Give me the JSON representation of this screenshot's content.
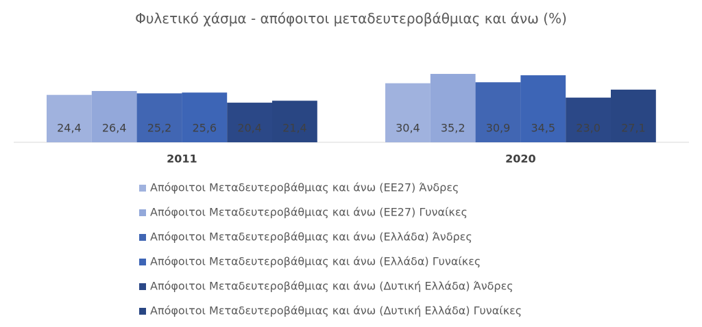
{
  "chart_data": {
    "type": "bar",
    "title": "Φυλετικό χάσμα - απόφοιτοι μεταδευτεροβάθμιας και άνω (%)",
    "categories": [
      "2011",
      "2020"
    ],
    "series": [
      {
        "name": "Απόφοιτοι Μεταδευτεροβάθμιας και άνω (ΕΕ27) Άνδρες",
        "color": "#a0b2de",
        "values": [
          24.4,
          30.4
        ],
        "value_labels": [
          "24,4",
          "30,4"
        ]
      },
      {
        "name": "Απόφοιτοι Μεταδευτεροβάθμιας και άνω (ΕΕ27) Γυναίκες",
        "color": "#93a8da",
        "values": [
          26.4,
          35.2
        ],
        "value_labels": [
          "26,4",
          "35,2"
        ]
      },
      {
        "name": "Απόφοιτοι Μεταδευτεροβάθμιας και άνω (Ελλάδα) Άνδρες",
        "color": "#4166b3",
        "values": [
          25.2,
          30.9
        ],
        "value_labels": [
          "25,2",
          "30,9"
        ]
      },
      {
        "name": "Απόφοιτοι Μεταδευτεροβάθμιας και άνω (Ελλάδα) Γυναίκες",
        "color": "#3d65b6",
        "values": [
          25.6,
          34.5
        ],
        "value_labels": [
          "25,6",
          "34,5"
        ]
      },
      {
        "name": "Απόφοιτοι Μεταδευτεροβάθμιας και άνω (Δυτική Ελλάδα) Άνδρες",
        "color": "#2b4887",
        "values": [
          20.4,
          23.0
        ],
        "value_labels": [
          "20,4",
          "23,0"
        ]
      },
      {
        "name": "Απόφοιτοι Μεταδευτεροβάθμιας και άνω (Δυτική Ελλάδα) Γυναίκες",
        "color": "#294683",
        "values": [
          21.4,
          27.1
        ],
        "value_labels": [
          "21,4",
          "27,1"
        ]
      }
    ]
  }
}
